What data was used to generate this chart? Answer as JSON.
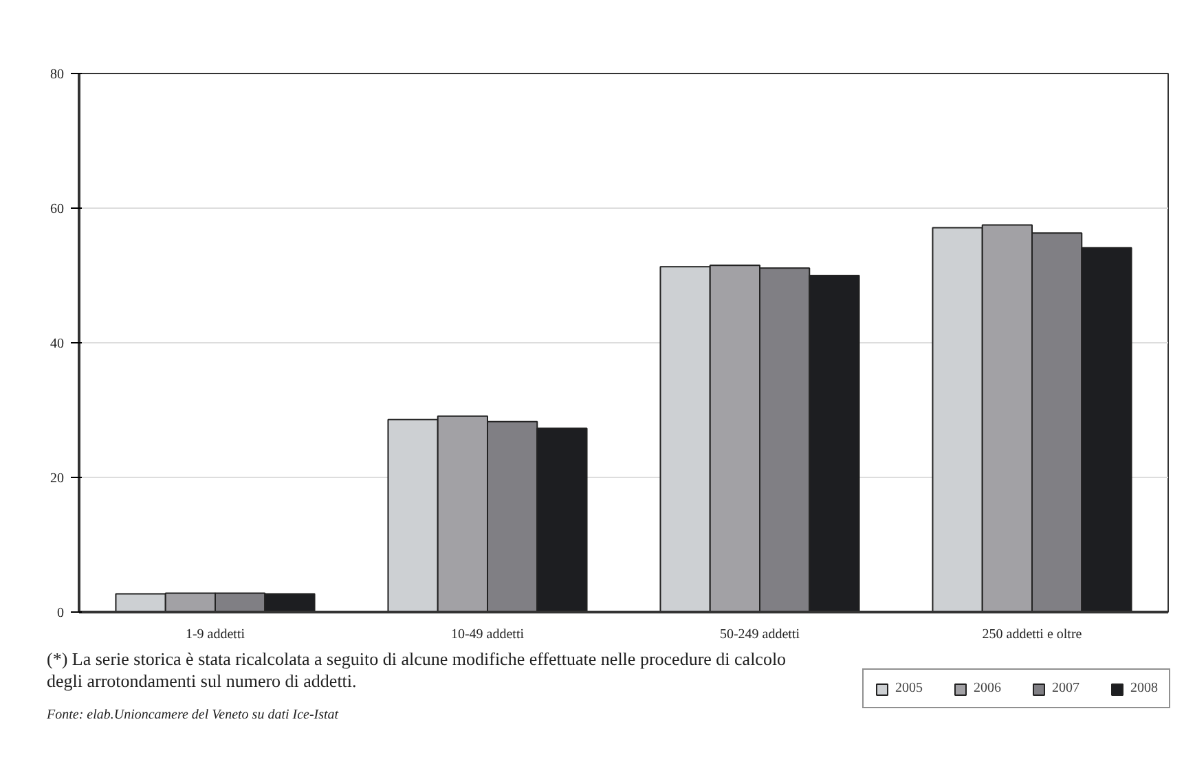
{
  "chart_data": {
    "type": "bar",
    "categories": [
      "1-9 addetti",
      "10-49 addetti",
      "50-249 addetti",
      "250 addetti e oltre"
    ],
    "series": [
      {
        "name": "2005",
        "color": "#cdd0d3",
        "values": [
          2.7,
          28.6,
          51.3,
          57.1
        ]
      },
      {
        "name": "2006",
        "color": "#a2a1a5",
        "values": [
          2.8,
          29.1,
          51.5,
          57.5
        ]
      },
      {
        "name": "2007",
        "color": "#807f84",
        "values": [
          2.8,
          28.3,
          51.1,
          56.3
        ]
      },
      {
        "name": "2008",
        "color": "#1d1e21",
        "values": [
          2.7,
          27.3,
          50.0,
          54.1
        ]
      }
    ],
    "ylim": [
      0,
      80
    ],
    "yticks": [
      0,
      20,
      40,
      60,
      80
    ],
    "grid": "y",
    "legend": "bottom right",
    "annotations": [
      "(*) La serie storica è stata ricalcolata a seguito di alcune modifiche effettuate nelle procedure di calcolo degli arrotondamenti sul numero di addetti.",
      "Fonte: elab.Unioncamere del Veneto su dati Ice-Istat"
    ]
  }
}
